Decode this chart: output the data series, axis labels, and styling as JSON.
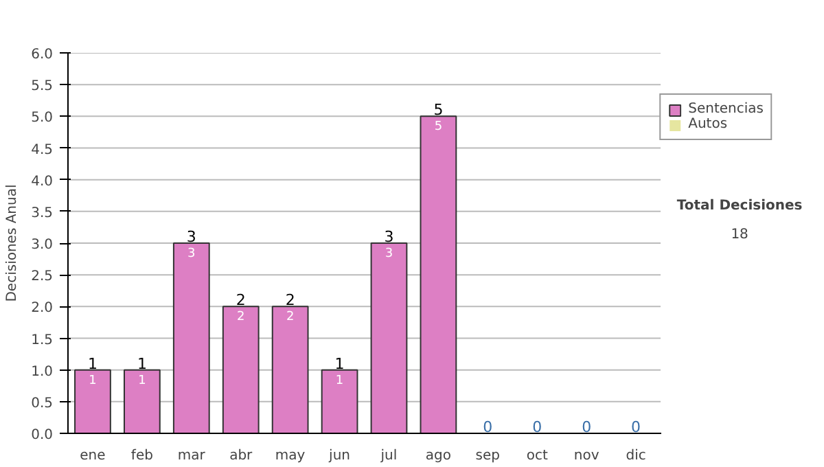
{
  "chart_data": {
    "type": "bar",
    "stacked": true,
    "ylabel": "Decisiones Anual",
    "categories": [
      "ene",
      "feb",
      "mar",
      "abr",
      "may",
      "jun",
      "jul",
      "ago",
      "sep",
      "oct",
      "nov",
      "dic"
    ],
    "series": [
      {
        "name": "Sentencias",
        "color": "#dd7fc4",
        "values": [
          1,
          1,
          3,
          2,
          2,
          1,
          3,
          5,
          0,
          0,
          0,
          0
        ],
        "value_labels": [
          "1",
          "1",
          "3",
          "2",
          "2",
          "1",
          "3",
          "5",
          null,
          null,
          null,
          null
        ]
      },
      {
        "name": "Autos",
        "color": "#e6e6a0",
        "values": [
          0,
          0,
          0,
          0,
          0,
          0,
          0,
          0,
          0,
          0,
          0,
          0
        ]
      }
    ],
    "totals": [
      "1",
      "1",
      "3",
      "2",
      "2",
      "1",
      "3",
      "5",
      "0",
      "0",
      "0",
      "0"
    ],
    "ylim": [
      0,
      6
    ],
    "yticks": [
      {
        "value": 0,
        "label": "0.0"
      },
      {
        "value": 0.5,
        "label": "0.5"
      },
      {
        "value": 1,
        "label": "1.0"
      },
      {
        "value": 1.5,
        "label": "1.5"
      },
      {
        "value": 2,
        "label": "2.0"
      },
      {
        "value": 2.5,
        "label": "2.5"
      },
      {
        "value": 3,
        "label": "3.0"
      },
      {
        "value": 3.5,
        "label": "3.5"
      },
      {
        "value": 4,
        "label": "4.0"
      },
      {
        "value": 4.5,
        "label": "4.5"
      },
      {
        "value": 5,
        "label": "5.0"
      },
      {
        "value": 5.5,
        "label": "5.5"
      },
      {
        "value": 6,
        "label": "6.0"
      }
    ],
    "grid": "y",
    "legend": "right",
    "annotations": [
      "Total Decisiones",
      "18"
    ]
  }
}
